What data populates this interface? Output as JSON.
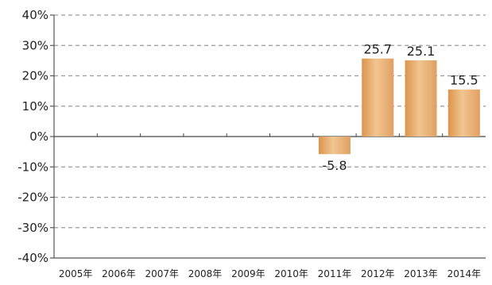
{
  "chart_data": {
    "type": "bar",
    "categories": [
      "2005年",
      "2006年",
      "2007年",
      "2008年",
      "2009年",
      "2010年",
      "2011年",
      "2012年",
      "2013年",
      "2014年"
    ],
    "values": [
      null,
      null,
      null,
      null,
      null,
      null,
      -5.8,
      25.7,
      25.1,
      15.5
    ],
    "data_labels": [
      "",
      "",
      "",
      "",
      "",
      "",
      "-5.8",
      "25.7",
      "25.1",
      "15.5"
    ],
    "ylim": [
      -40,
      40
    ],
    "yticks": [
      -40,
      -30,
      -20,
      -10,
      0,
      10,
      20,
      30,
      40
    ],
    "ytick_labels": [
      "-40%",
      "-30%",
      "-20%",
      "-10%",
      "0%",
      "10%",
      "20%",
      "30%",
      "40%"
    ],
    "title": "",
    "xlabel": "",
    "ylabel": "",
    "grid": "dashed horizontal",
    "colors": {
      "bar": "#eab47a",
      "bar_dark": "#d98f45",
      "axis": "#555555",
      "grid": "#9a9a9a"
    }
  }
}
